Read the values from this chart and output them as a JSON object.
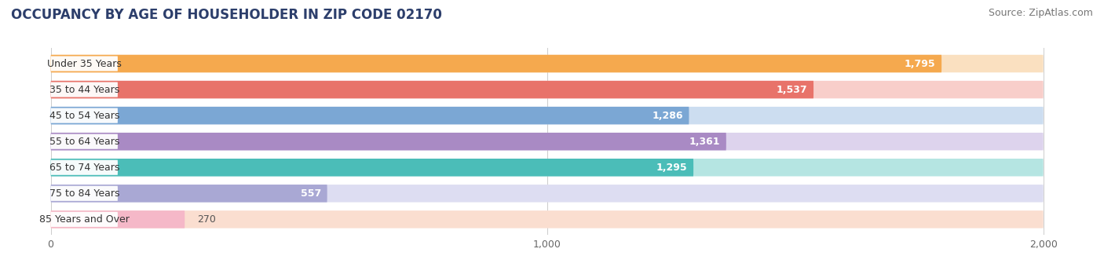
{
  "title": "OCCUPANCY BY AGE OF HOUSEHOLDER IN ZIP CODE 02170",
  "source": "Source: ZipAtlas.com",
  "categories": [
    "Under 35 Years",
    "35 to 44 Years",
    "45 to 54 Years",
    "55 to 64 Years",
    "65 to 74 Years",
    "75 to 84 Years",
    "85 Years and Over"
  ],
  "values": [
    1795,
    1537,
    1286,
    1361,
    1295,
    557,
    270
  ],
  "bar_colors": [
    "#F5A94E",
    "#E8736A",
    "#7BA7D4",
    "#A98AC4",
    "#4BBDB8",
    "#A9A8D4",
    "#F5B8C8"
  ],
  "bar_bg_colors": [
    "#FAE0C0",
    "#F8CECA",
    "#CCDDF0",
    "#DDD3ED",
    "#B5E5E2",
    "#DDDDF2",
    "#FADED0"
  ],
  "xticks": [
    0,
    1000,
    2000
  ],
  "xticklabels": [
    "0",
    "1,000",
    "2,000"
  ],
  "title_fontsize": 12,
  "title_color": "#2C3E6B",
  "source_fontsize": 9,
  "label_fontsize": 9,
  "value_fontsize": 9,
  "background_color": "#FFFFFF",
  "xmax": 2000,
  "xmin": 0
}
